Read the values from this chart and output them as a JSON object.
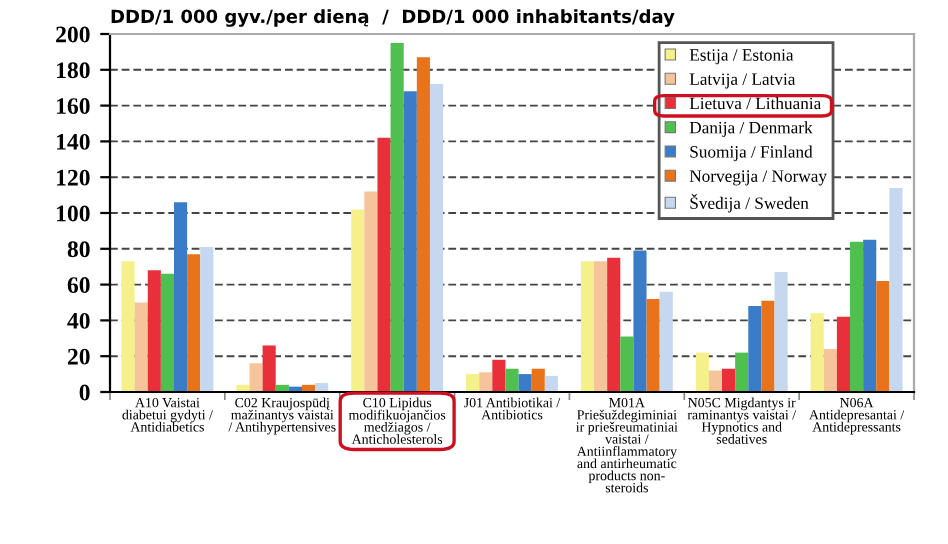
{
  "chart_data": {
    "type": "bar",
    "title": "DDD/1 000 gyv./per dieną  /  DDD/1 000 inhabitants/day",
    "categories": [
      "A10 Vaistai\ndiabetui gydyti /\nAntidiabetics",
      "C02 Kraujospūdį\nmažinantys vaistai\n/ Antihypertensives",
      "C10 Lipidus\nmodifikuojančios\nmedžiagos /\nAnticholesterols",
      "J01 Antibiotikai /\nAntibiotics",
      "M01A\nPriešuždegiminiai\nir priešreumatiniai\nvaistai /\nAntiinflammatory\nand antirheumatic\nproducts non-\nsteroids",
      "N05C Migdantys ir\nraminantys vaistai /\nHypnotics and\nsedatives",
      "N06A\nAntidepresantai /\nAntidepressants"
    ],
    "series": [
      {
        "name": "Estija / Estonia",
        "color": "#f5f08a",
        "values": [
          73,
          4,
          102,
          10,
          73,
          22,
          44
        ]
      },
      {
        "name": "Latvija / Latvia",
        "color": "#f5c49a",
        "values": [
          50,
          16,
          112,
          11,
          73,
          12,
          24
        ]
      },
      {
        "name": "Lietuva / Lithuania",
        "color": "#e8303a",
        "values": [
          68,
          26,
          142,
          18,
          75,
          13,
          42
        ]
      },
      {
        "name": "Danija / Denmark",
        "color": "#4fc04f",
        "values": [
          66,
          4,
          195,
          13,
          31,
          22,
          84
        ]
      },
      {
        "name": "Suomija / Finland",
        "color": "#3a7cc8",
        "values": [
          106,
          3,
          168,
          10,
          79,
          48,
          85
        ]
      },
      {
        "name": "Norvegija / Norway",
        "color": "#e8731a",
        "values": [
          77,
          4,
          187,
          13,
          52,
          51,
          62
        ]
      },
      {
        "name": "Švedija / Sweden",
        "color": "#c5d8ef",
        "values": [
          81,
          5,
          172,
          9,
          56,
          67,
          114
        ]
      }
    ],
    "ylim": [
      0,
      200
    ],
    "yticks": [
      0,
      20,
      40,
      60,
      80,
      100,
      120,
      140,
      160,
      180,
      200
    ],
    "grid": "y",
    "legend": "top right"
  }
}
